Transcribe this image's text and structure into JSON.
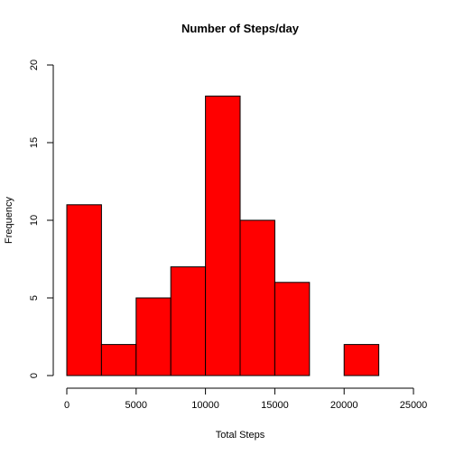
{
  "chart_data": {
    "type": "bar",
    "title": "Number of Steps/day",
    "xlabel": "Total Steps",
    "ylabel": "Frequency",
    "bin_edges": [
      0,
      2500,
      5000,
      7500,
      10000,
      12500,
      15000,
      17500,
      20000,
      22500
    ],
    "values": [
      11,
      2,
      5,
      7,
      18,
      10,
      6,
      0,
      2
    ],
    "xlim": [
      0,
      25000
    ],
    "ylim": [
      0,
      20
    ],
    "x_ticks": [
      0,
      5000,
      10000,
      15000,
      20000,
      25000
    ],
    "y_ticks": [
      0,
      5,
      10,
      15,
      20
    ],
    "bar_color": "#ff0000",
    "grid": false
  }
}
